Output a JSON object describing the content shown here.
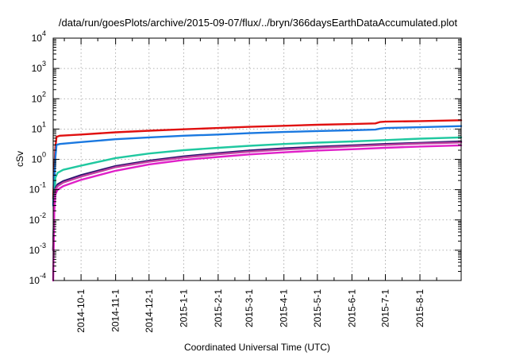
{
  "chart_data": {
    "type": "line",
    "title": "/data/run/goesPlots/archive/2015-09-07/flux/../bryn/366daysEarthDataAccumulated.plot",
    "xlabel": "Coordinated Universal Time (UTC)",
    "ylabel": "cSv",
    "y_scale": "log",
    "ylim": [
      0.0001,
      10000
    ],
    "xlim": [
      "2014-09-06",
      "2015-09-07"
    ],
    "grid": true,
    "x_tick_labels": [
      "2014-10-1",
      "2014-11-1",
      "2014-12-1",
      "2015-1-1",
      "2015-2-1",
      "2015-3-1",
      "2015-4-1",
      "2015-5-1",
      "2015-6-1",
      "2015-7-1",
      "2015-8-1"
    ],
    "y_tick_labels": [
      {
        "value": 0.0001,
        "base": "10",
        "exp": "-4"
      },
      {
        "value": 0.001,
        "base": "10",
        "exp": "-3"
      },
      {
        "value": 0.01,
        "base": "10",
        "exp": "-2"
      },
      {
        "value": 0.1,
        "base": "10",
        "exp": "-1"
      },
      {
        "value": 1,
        "base": "10",
        "exp": "0"
      },
      {
        "value": 10,
        "base": "10",
        "exp": "1"
      },
      {
        "value": 100,
        "base": "10",
        "exp": "2"
      },
      {
        "value": 1000,
        "base": "10",
        "exp": "3"
      },
      {
        "value": 10000,
        "base": "10",
        "exp": "4"
      }
    ],
    "series": [
      {
        "color": "#e01010",
        "x": [
          "2014-09-06",
          "2014-09-07",
          "2014-09-08",
          "2014-09-09",
          "2014-09-12",
          "2014-10-01",
          "2014-11-01",
          "2014-12-01",
          "2015-01-01",
          "2015-02-01",
          "2015-03-01",
          "2015-04-01",
          "2015-05-01",
          "2015-06-01",
          "2015-06-22",
          "2015-06-26",
          "2015-07-01",
          "2015-08-01",
          "2015-09-07"
        ],
        "y": [
          0.05,
          0.5,
          2.5,
          5.5,
          6.0,
          6.6,
          7.8,
          8.8,
          9.8,
          10.8,
          11.8,
          12.8,
          13.8,
          14.6,
          15.3,
          17.0,
          17.5,
          18.3,
          19.5
        ]
      },
      {
        "color": "#1a78e0",
        "x": [
          "2014-09-06",
          "2014-09-07",
          "2014-09-08",
          "2014-09-09",
          "2014-09-12",
          "2014-10-01",
          "2014-11-01",
          "2014-12-01",
          "2015-01-01",
          "2015-02-01",
          "2015-03-01",
          "2015-04-01",
          "2015-05-01",
          "2015-06-01",
          "2015-06-22",
          "2015-06-26",
          "2015-07-01",
          "2015-08-01",
          "2015-09-07"
        ],
        "y": [
          0.03,
          0.2,
          1.2,
          3.0,
          3.2,
          3.7,
          4.6,
          5.3,
          6.0,
          6.6,
          7.3,
          8.0,
          8.6,
          9.1,
          9.6,
          10.3,
          10.8,
          11.5,
          12.5
        ]
      },
      {
        "color": "#20c8a0",
        "x": [
          "2014-09-06",
          "2014-09-07",
          "2014-09-08",
          "2014-09-10",
          "2014-09-15",
          "2014-10-01",
          "2014-11-01",
          "2014-12-01",
          "2015-01-01",
          "2015-02-01",
          "2015-03-01",
          "2015-04-01",
          "2015-05-01",
          "2015-06-01",
          "2015-07-01",
          "2015-08-01",
          "2015-09-07"
        ],
        "y": [
          0.001,
          0.04,
          0.25,
          0.36,
          0.45,
          0.62,
          1.1,
          1.55,
          2.0,
          2.4,
          2.8,
          3.2,
          3.55,
          3.9,
          4.3,
          4.8,
          5.3
        ]
      },
      {
        "color": "#2a1470",
        "x": [
          "2014-09-06",
          "2014-09-07",
          "2014-09-08",
          "2014-09-10",
          "2014-09-15",
          "2014-10-01",
          "2014-11-01",
          "2014-12-01",
          "2015-01-01",
          "2015-02-01",
          "2015-03-01",
          "2015-04-01",
          "2015-05-01",
          "2015-06-01",
          "2015-07-01",
          "2015-08-01",
          "2015-09-07"
        ],
        "y": [
          0.001,
          0.03,
          0.11,
          0.15,
          0.19,
          0.3,
          0.6,
          0.9,
          1.25,
          1.6,
          1.95,
          2.3,
          2.6,
          2.9,
          3.2,
          3.5,
          3.9
        ]
      },
      {
        "color": "#c040a0",
        "x": [
          "2014-09-06",
          "2014-09-07",
          "2014-09-08",
          "2014-09-10",
          "2014-09-15",
          "2014-10-01",
          "2014-11-01",
          "2014-12-01",
          "2015-01-01",
          "2015-02-01",
          "2015-03-01",
          "2015-04-01",
          "2015-05-01",
          "2015-06-01",
          "2015-07-01",
          "2015-08-01",
          "2015-09-07"
        ],
        "y": [
          0.001,
          0.025,
          0.1,
          0.13,
          0.17,
          0.27,
          0.55,
          0.84,
          1.15,
          1.48,
          1.8,
          2.1,
          2.4,
          2.7,
          3.0,
          3.3,
          3.6
        ]
      },
      {
        "color": "#e020c8",
        "x": [
          "2014-09-06",
          "2014-09-07",
          "2014-09-08",
          "2014-09-10",
          "2014-09-15",
          "2014-10-01",
          "2014-11-01",
          "2014-12-01",
          "2015-01-01",
          "2015-02-01",
          "2015-03-01",
          "2015-04-01",
          "2015-05-01",
          "2015-06-01",
          "2015-07-01",
          "2015-08-01",
          "2015-09-07"
        ],
        "y": [
          0.0001,
          0.02,
          0.07,
          0.1,
          0.13,
          0.21,
          0.42,
          0.68,
          0.95,
          1.2,
          1.45,
          1.7,
          1.95,
          2.15,
          2.4,
          2.65,
          2.9
        ]
      }
    ]
  }
}
